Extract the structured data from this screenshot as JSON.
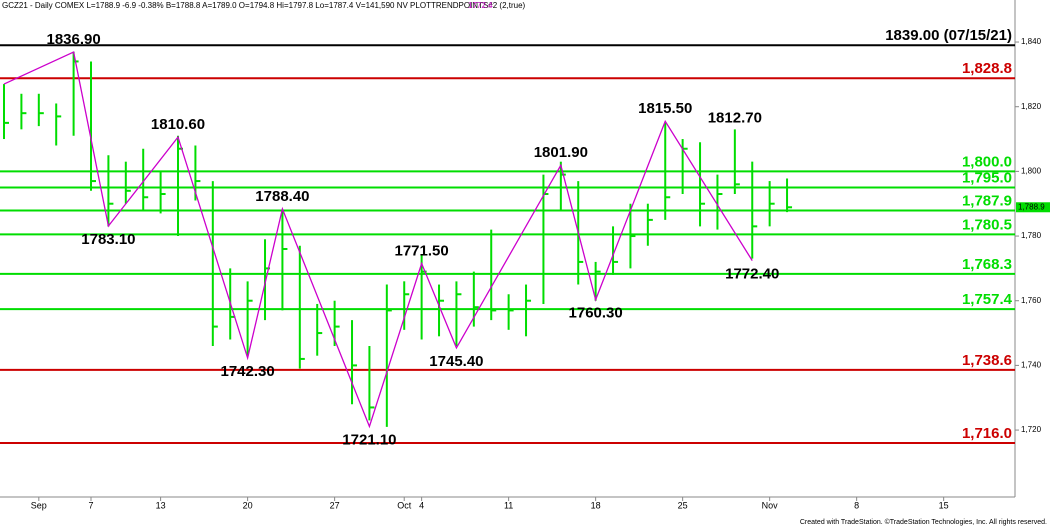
{
  "chart_data": {
    "type": "ohlc",
    "header": "GCZ21 - Daily  COMEX  L=1788.9  -6.9  -0.38%  B=1788.8  A=1789.0  O=1794.8  Hi=1797.8  Lo=1787.4  V=141,590  NV  PLOTTRENDPOINTS#2 (2,true)",
    "indicator_value": "1772.4",
    "footer": "Created with TradeStation. ©TradeStation Technologies, Inc. All rights reserved.",
    "last_price": {
      "value": 1788.9,
      "label": "1,788.9"
    },
    "color": "#00dd00",
    "high": [
      1827,
      1824,
      1824,
      1821,
      1837,
      1834,
      1805,
      1803,
      1807,
      1800,
      1811,
      1808,
      1797,
      1770,
      1766,
      1779,
      1788,
      1777,
      1759,
      1760,
      1754,
      1746,
      1765,
      1766,
      1774,
      1765,
      1766,
      1769,
      1782,
      1762,
      1765,
      1799,
      1803,
      1797,
      1772,
      1783,
      1790,
      1790,
      1815,
      1810,
      1809,
      1799,
      1813,
      1803,
      1797,
      1797.8
    ],
    "low": [
      1810,
      1813,
      1814,
      1808,
      1811,
      1794,
      1783,
      1790,
      1788,
      1787,
      1780,
      1791,
      1746,
      1748,
      1743,
      1754,
      1757,
      1739,
      1743,
      1746,
      1728,
      1723,
      1721,
      1751,
      1748,
      1749,
      1746,
      1752,
      1754,
      1751,
      1749,
      1759,
      1788,
      1765,
      1760,
      1768,
      1770,
      1777,
      1785,
      1793,
      1783,
      1782,
      1793,
      1773,
      1783,
      1787.4
    ],
    "close": [
      1815,
      1818,
      1818,
      1817,
      1834,
      1797,
      1790,
      1794,
      1792,
      1793,
      1807,
      1797,
      1752,
      1755,
      1760,
      1770,
      1776,
      1742,
      1750,
      1752,
      1740,
      1727,
      1757,
      1762,
      1769,
      1760,
      1762,
      1758,
      1757,
      1757,
      1760,
      1793,
      1799,
      1772,
      1769,
      1772,
      1780,
      1785,
      1792,
      1807,
      1790,
      1793,
      1796,
      1783,
      1790,
      1788.9
    ],
    "pivots": {
      "color": "#cc00cc",
      "x": [
        0,
        4,
        6,
        10,
        14,
        16,
        21,
        24,
        26,
        32,
        34,
        38,
        43
      ],
      "values": [
        1827,
        1836.9,
        1783.1,
        1810.6,
        1742.3,
        1788.4,
        1721.1,
        1771.5,
        1745.4,
        1801.9,
        1760.3,
        1815.5,
        1772.4
      ],
      "value_labels": [
        null,
        "1836.90",
        "1783.10",
        "1810.60",
        "1742.30",
        "1788.40",
        "1721.10",
        "1771.50",
        "1745.40",
        "1801.90",
        "1760.30",
        "1815.50",
        "1772.40"
      ]
    },
    "annotations": [
      {
        "x": 42,
        "value": 1812.7,
        "label": "1812.70"
      }
    ],
    "levels": [
      {
        "value": 1839,
        "label": "1839.00 (07/15/21)",
        "color": "#000000"
      },
      {
        "value": 1828.8,
        "label": "1,828.8",
        "color": "#cc0000"
      },
      {
        "value": 1800,
        "label": "1,800.0",
        "color": "#00dd00"
      },
      {
        "value": 1795,
        "label": "1,795.0",
        "color": "#00dd00"
      },
      {
        "value": 1787.9,
        "label": "1,787.9",
        "color": "#00dd00"
      },
      {
        "value": 1780.5,
        "label": "1,780.5",
        "color": "#00dd00"
      },
      {
        "value": 1768.3,
        "label": "1,768.3",
        "color": "#00dd00"
      },
      {
        "value": 1757.4,
        "label": "1,757.4",
        "color": "#00dd00"
      },
      {
        "value": 1738.6,
        "label": "1,738.6",
        "color": "#cc0000"
      },
      {
        "value": 1716,
        "label": "1,716.0",
        "color": "#cc0000"
      }
    ],
    "xlim": [
      -0.23,
      58.1
    ],
    "xticks": [
      {
        "value": 2,
        "label": "Sep"
      },
      {
        "value": 5,
        "label": "7"
      },
      {
        "value": 9,
        "label": "13"
      },
      {
        "value": 14,
        "label": "20"
      },
      {
        "value": 19,
        "label": "27"
      },
      {
        "value": 23,
        "label": "Oct"
      },
      {
        "value": 24,
        "label": "4"
      },
      {
        "value": 29,
        "label": "11"
      },
      {
        "value": 34,
        "label": "18"
      },
      {
        "value": 39,
        "label": "25"
      },
      {
        "value": 44,
        "label": "Nov"
      },
      {
        "value": 49,
        "label": "8"
      },
      {
        "value": 54,
        "label": "15"
      }
    ],
    "ylim": [
      1699.3,
      1853
    ],
    "yticks": [
      {
        "value": 1720,
        "label": "1,720"
      },
      {
        "value": 1740,
        "label": "1,740"
      },
      {
        "value": 1760,
        "label": "1,760"
      },
      {
        "value": 1780,
        "label": "1,780"
      },
      {
        "value": 1800,
        "label": "1,800"
      },
      {
        "value": 1820,
        "label": "1,820"
      },
      {
        "value": 1840,
        "label": "1,840"
      }
    ]
  }
}
